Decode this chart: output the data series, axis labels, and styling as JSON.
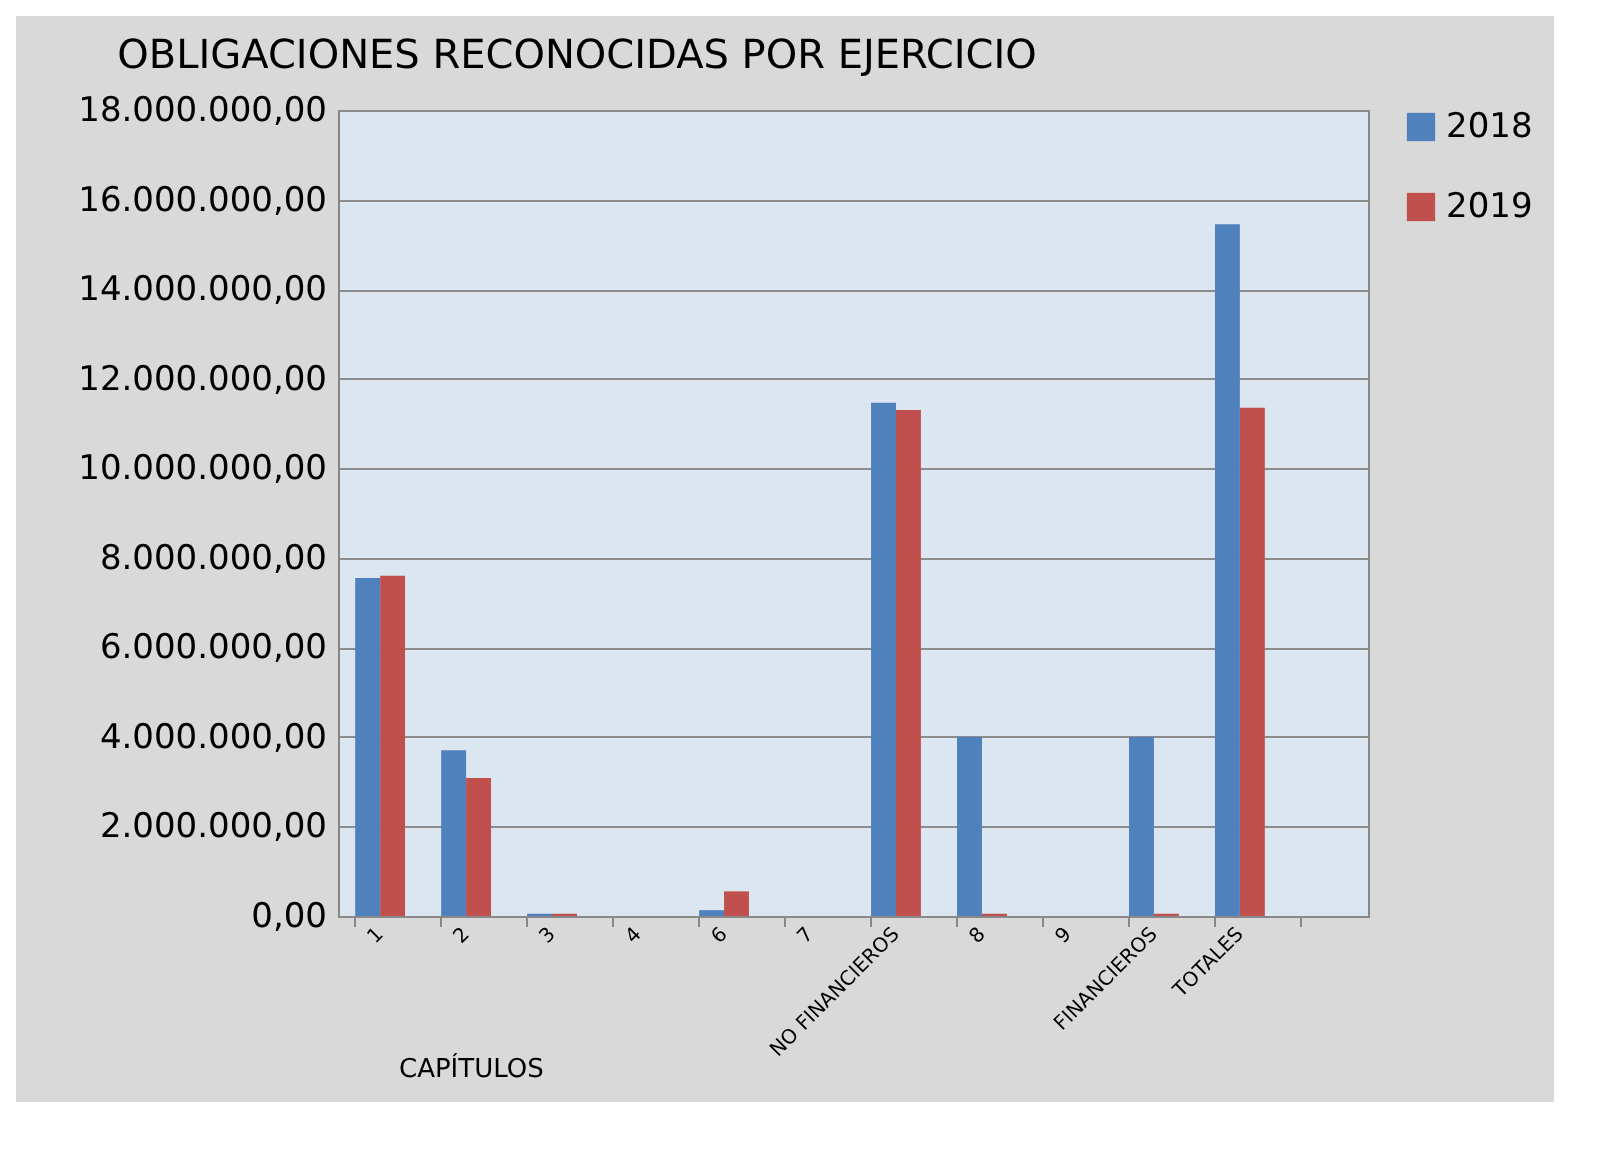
{
  "chart_data": {
    "type": "bar",
    "title": "OBLIGACIONES RECONOCIDAS POR EJERCICIO",
    "xlabel": "CAPÍTULOS",
    "categories": [
      "1",
      "2",
      "3",
      "4",
      "6",
      "7",
      "NO FINANCIEROS",
      "8",
      "9",
      "FINANCIEROS",
      "TOTALES",
      null
    ],
    "series": [
      {
        "name": "2018",
        "color": "#4f81bd",
        "values": [
          7550000,
          3700000,
          50000,
          0,
          130000,
          0,
          11460000,
          4000000,
          0,
          4000000,
          15450000,
          null
        ]
      },
      {
        "name": "2019",
        "color": "#c0504d",
        "values": [
          7600000,
          3080000,
          50000,
          0,
          550000,
          0,
          11300000,
          50000,
          0,
          50000,
          11350000,
          null
        ]
      }
    ],
    "ylim": [
      0,
      18000000
    ],
    "yticks": [
      {
        "value": 0,
        "label": "0,00"
      },
      {
        "value": 2000000,
        "label": "2.000.000,00"
      },
      {
        "value": 4000000,
        "label": "4.000.000,00"
      },
      {
        "value": 6000000,
        "label": "6.000.000,00"
      },
      {
        "value": 8000000,
        "label": "8.000.000,00"
      },
      {
        "value": 10000000,
        "label": "10.000.000,00"
      },
      {
        "value": 12000000,
        "label": "12.000.000,00"
      },
      {
        "value": 14000000,
        "label": "14.000.000,00"
      },
      {
        "value": 16000000,
        "label": "16.000.000,00"
      },
      {
        "value": 18000000,
        "label": "18.000.000,00"
      }
    ],
    "grid": "y",
    "legend": "right"
  }
}
